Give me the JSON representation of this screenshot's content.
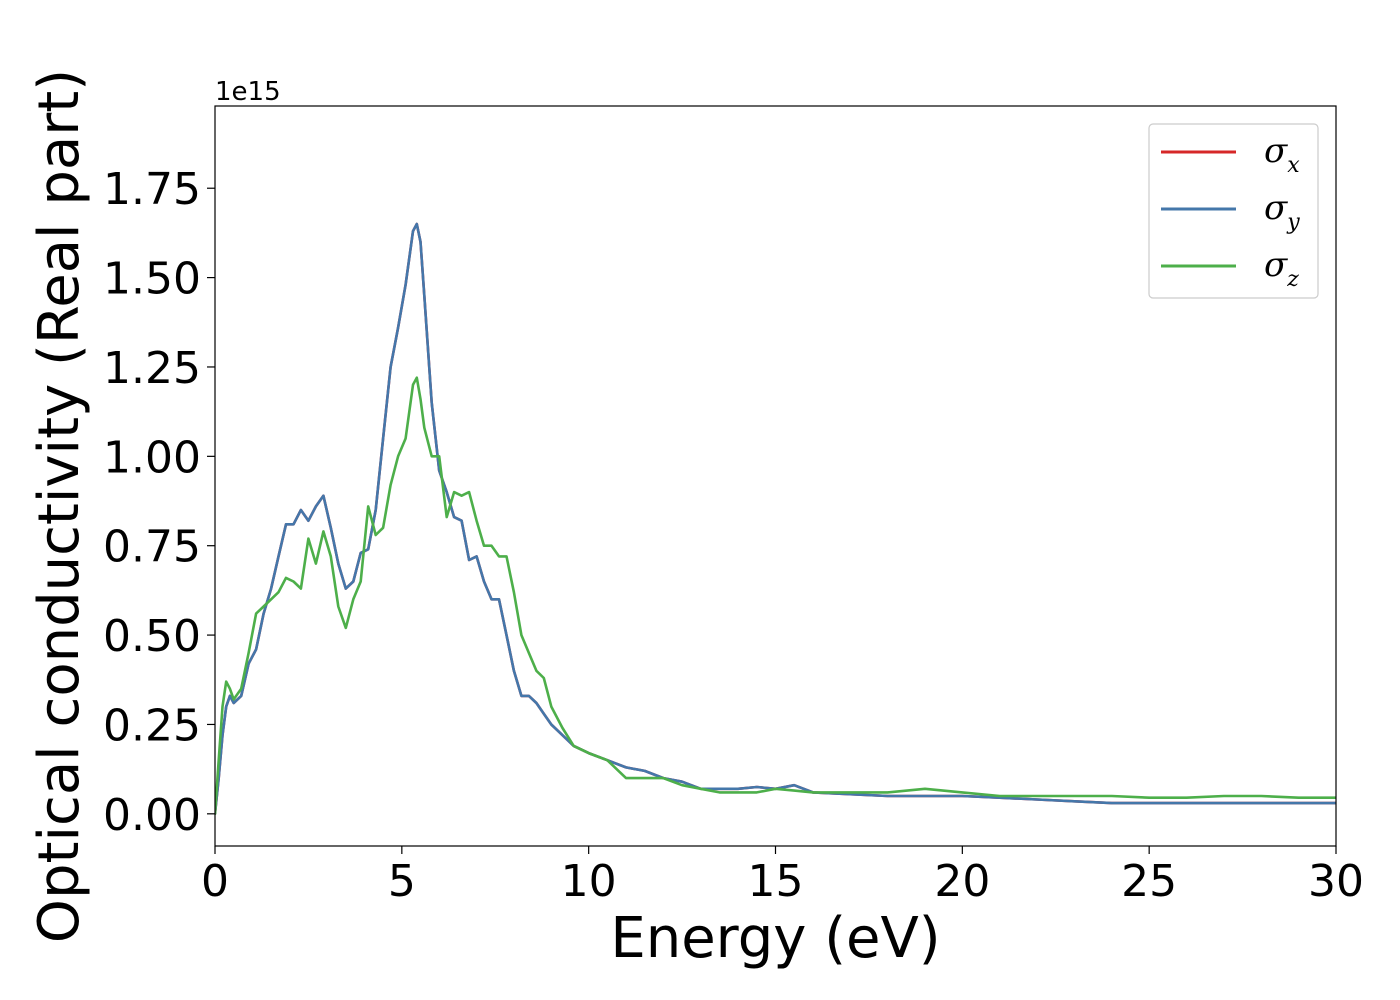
{
  "chart_data": {
    "type": "line",
    "title": "",
    "xlabel": "Energy (eV)",
    "ylabel": "Optical conductivity (Real part)",
    "y_offset_label": "1e15",
    "xlim": [
      0,
      30
    ],
    "ylim": [
      -0.09,
      1.98
    ],
    "x_ticks": [
      0,
      5,
      10,
      15,
      20,
      25,
      30
    ],
    "x_tick_labels": [
      "0",
      "5",
      "10",
      "15",
      "20",
      "25",
      "30"
    ],
    "y_ticks": [
      0.0,
      0.25,
      0.5,
      0.75,
      1.0,
      1.25,
      1.5,
      1.75
    ],
    "y_tick_labels": [
      "0.00",
      "0.25",
      "0.50",
      "0.75",
      "1.00",
      "1.25",
      "1.50",
      "1.75"
    ],
    "grid": false,
    "legend_position": "top-right",
    "series": [
      {
        "name": "σx",
        "symbol": "σ",
        "subscript": "x",
        "color": "#d62728",
        "x": [
          0,
          0.1,
          0.2,
          0.3,
          0.4,
          0.5,
          0.7,
          0.9,
          1.1,
          1.3,
          1.5,
          1.7,
          1.9,
          2.1,
          2.3,
          2.5,
          2.7,
          2.9,
          3.1,
          3.3,
          3.5,
          3.7,
          3.9,
          4.1,
          4.3,
          4.5,
          4.7,
          4.9,
          5.1,
          5.3,
          5.4,
          5.5,
          5.6,
          5.8,
          6.0,
          6.2,
          6.4,
          6.6,
          6.8,
          7.0,
          7.2,
          7.4,
          7.6,
          7.8,
          8.0,
          8.2,
          8.4,
          8.6,
          8.8,
          9.0,
          9.3,
          9.6,
          10.0,
          10.5,
          11.0,
          11.5,
          12.0,
          12.5,
          13.0,
          13.5,
          14.0,
          14.5,
          15.0,
          15.5,
          16.0,
          17.0,
          18.0,
          19.0,
          20.0,
          21.0,
          22.0,
          23.0,
          24.0,
          25.0,
          26.0,
          27.0,
          28.0,
          29.0,
          30.0
        ],
        "y": [
          0.0,
          0.1,
          0.22,
          0.3,
          0.33,
          0.31,
          0.33,
          0.42,
          0.46,
          0.56,
          0.63,
          0.72,
          0.81,
          0.81,
          0.85,
          0.82,
          0.86,
          0.89,
          0.8,
          0.7,
          0.63,
          0.65,
          0.73,
          0.74,
          0.85,
          1.05,
          1.25,
          1.36,
          1.48,
          1.63,
          1.65,
          1.6,
          1.45,
          1.15,
          0.96,
          0.9,
          0.83,
          0.82,
          0.71,
          0.72,
          0.65,
          0.6,
          0.6,
          0.5,
          0.4,
          0.33,
          0.33,
          0.31,
          0.28,
          0.25,
          0.22,
          0.19,
          0.17,
          0.15,
          0.13,
          0.12,
          0.1,
          0.09,
          0.07,
          0.07,
          0.07,
          0.075,
          0.07,
          0.08,
          0.06,
          0.055,
          0.05,
          0.05,
          0.05,
          0.045,
          0.04,
          0.035,
          0.03,
          0.03,
          0.03,
          0.03,
          0.03,
          0.03,
          0.03
        ]
      },
      {
        "name": "σy",
        "symbol": "σ",
        "subscript": "y",
        "color": "#4477aa",
        "x": [
          0,
          0.1,
          0.2,
          0.3,
          0.4,
          0.5,
          0.7,
          0.9,
          1.1,
          1.3,
          1.5,
          1.7,
          1.9,
          2.1,
          2.3,
          2.5,
          2.7,
          2.9,
          3.1,
          3.3,
          3.5,
          3.7,
          3.9,
          4.1,
          4.3,
          4.5,
          4.7,
          4.9,
          5.1,
          5.3,
          5.4,
          5.5,
          5.6,
          5.8,
          6.0,
          6.2,
          6.4,
          6.6,
          6.8,
          7.0,
          7.2,
          7.4,
          7.6,
          7.8,
          8.0,
          8.2,
          8.4,
          8.6,
          8.8,
          9.0,
          9.3,
          9.6,
          10.0,
          10.5,
          11.0,
          11.5,
          12.0,
          12.5,
          13.0,
          13.5,
          14.0,
          14.5,
          15.0,
          15.5,
          16.0,
          17.0,
          18.0,
          19.0,
          20.0,
          21.0,
          22.0,
          23.0,
          24.0,
          25.0,
          26.0,
          27.0,
          28.0,
          29.0,
          30.0
        ],
        "y": [
          0.0,
          0.1,
          0.22,
          0.3,
          0.33,
          0.31,
          0.33,
          0.42,
          0.46,
          0.56,
          0.63,
          0.72,
          0.81,
          0.81,
          0.85,
          0.82,
          0.86,
          0.89,
          0.8,
          0.7,
          0.63,
          0.65,
          0.73,
          0.74,
          0.85,
          1.05,
          1.25,
          1.36,
          1.48,
          1.63,
          1.65,
          1.6,
          1.45,
          1.15,
          0.96,
          0.9,
          0.83,
          0.82,
          0.71,
          0.72,
          0.65,
          0.6,
          0.6,
          0.5,
          0.4,
          0.33,
          0.33,
          0.31,
          0.28,
          0.25,
          0.22,
          0.19,
          0.17,
          0.15,
          0.13,
          0.12,
          0.1,
          0.09,
          0.07,
          0.07,
          0.07,
          0.075,
          0.07,
          0.08,
          0.06,
          0.055,
          0.05,
          0.05,
          0.05,
          0.045,
          0.04,
          0.035,
          0.03,
          0.03,
          0.03,
          0.03,
          0.03,
          0.03,
          0.03
        ]
      },
      {
        "name": "σz",
        "symbol": "σ",
        "subscript": "z",
        "color": "#4daf4a",
        "x": [
          0,
          0.1,
          0.2,
          0.3,
          0.4,
          0.5,
          0.7,
          0.9,
          1.1,
          1.3,
          1.5,
          1.7,
          1.9,
          2.1,
          2.3,
          2.5,
          2.7,
          2.9,
          3.1,
          3.3,
          3.5,
          3.7,
          3.9,
          4.1,
          4.3,
          4.5,
          4.7,
          4.9,
          5.1,
          5.3,
          5.4,
          5.5,
          5.6,
          5.8,
          6.0,
          6.2,
          6.4,
          6.6,
          6.8,
          7.0,
          7.2,
          7.4,
          7.6,
          7.8,
          8.0,
          8.2,
          8.4,
          8.6,
          8.8,
          9.0,
          9.3,
          9.6,
          10.0,
          10.5,
          11.0,
          11.5,
          12.0,
          12.5,
          13.0,
          13.5,
          14.0,
          14.5,
          15.0,
          15.5,
          16.0,
          17.0,
          18.0,
          19.0,
          20.0,
          21.0,
          22.0,
          23.0,
          24.0,
          25.0,
          26.0,
          27.0,
          28.0,
          29.0,
          30.0
        ],
        "y": [
          0.0,
          0.15,
          0.3,
          0.37,
          0.35,
          0.32,
          0.35,
          0.45,
          0.56,
          0.58,
          0.6,
          0.62,
          0.66,
          0.65,
          0.63,
          0.77,
          0.7,
          0.79,
          0.72,
          0.58,
          0.52,
          0.6,
          0.65,
          0.86,
          0.78,
          0.8,
          0.92,
          1.0,
          1.05,
          1.2,
          1.22,
          1.16,
          1.08,
          1.0,
          1.0,
          0.83,
          0.9,
          0.89,
          0.9,
          0.82,
          0.75,
          0.75,
          0.72,
          0.72,
          0.62,
          0.5,
          0.45,
          0.4,
          0.38,
          0.3,
          0.24,
          0.19,
          0.17,
          0.15,
          0.1,
          0.1,
          0.1,
          0.08,
          0.07,
          0.06,
          0.06,
          0.06,
          0.07,
          0.065,
          0.06,
          0.06,
          0.06,
          0.07,
          0.06,
          0.05,
          0.05,
          0.05,
          0.05,
          0.045,
          0.045,
          0.05,
          0.05,
          0.045,
          0.045
        ]
      }
    ]
  }
}
